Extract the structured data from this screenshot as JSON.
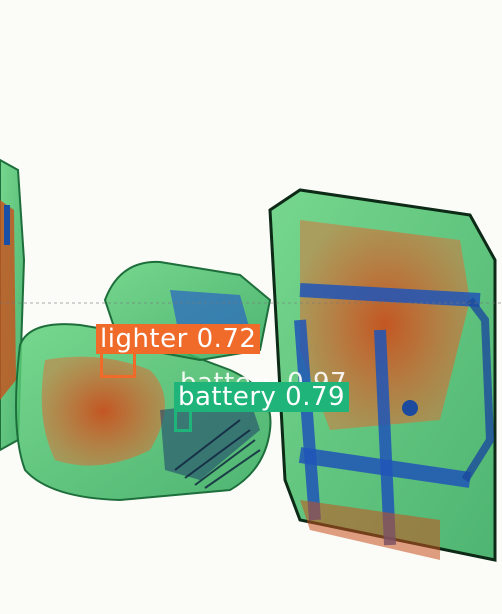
{
  "image": {
    "description_kind": "x-ray baggage scan with object detection overlays",
    "background_color": "#fbfbf8"
  },
  "detections": [
    {
      "label": "lighter",
      "score": "0.72",
      "color": "#f06a2a"
    },
    {
      "label": "battery",
      "score": "0.79",
      "color": "#1fb57a"
    }
  ],
  "overlap_ghost_text": "battery 0.97"
}
